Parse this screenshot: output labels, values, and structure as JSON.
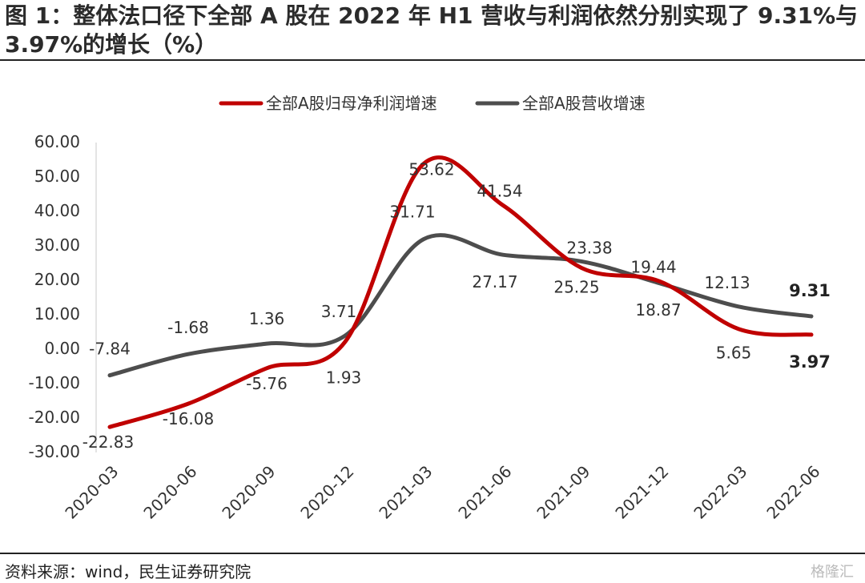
{
  "title": "图 1：整体法口径下全部 A 股在 2022 年 H1 营收与利润依然分别实现了 9.31%与 3.97%的增长（%）",
  "source": "资料来源：wind，民生证券研究院",
  "watermark": "格隆汇",
  "chart_data": {
    "type": "line",
    "categories": [
      "2020-03",
      "2020-06",
      "2020-09",
      "2020-12",
      "2021-03",
      "2021-06",
      "2021-09",
      "2021-12",
      "2022-03",
      "2022-06"
    ],
    "series": [
      {
        "name": "全部A股归母净利润增速",
        "color": "#c00000",
        "values": [
          -22.83,
          -16.08,
          -5.76,
          1.93,
          53.62,
          41.54,
          23.38,
          19.44,
          5.65,
          3.97
        ],
        "labels": [
          "-22.83",
          "-16.08",
          "-5.76",
          "1.93",
          "53.62",
          "41.54",
          "23.38",
          "19.44",
          "5.65",
          "3.97"
        ]
      },
      {
        "name": "全部A股营收增速",
        "color": "#4d4d4d",
        "values": [
          -7.84,
          -1.68,
          1.36,
          3.71,
          31.71,
          27.17,
          25.25,
          18.87,
          12.13,
          9.31
        ],
        "labels": [
          "-7.84",
          "-1.68",
          "1.36",
          "3.71",
          "31.71",
          "27.17",
          "25.25",
          "18.87",
          "12.13",
          "9.31"
        ]
      }
    ],
    "yticks": [
      "60.00",
      "50.00",
      "40.00",
      "30.00",
      "20.00",
      "10.00",
      "0.00",
      "-10.00",
      "-20.00",
      "-30.00"
    ],
    "ylim": [
      -30,
      60
    ],
    "legend_position": "top-center",
    "grid": false
  }
}
